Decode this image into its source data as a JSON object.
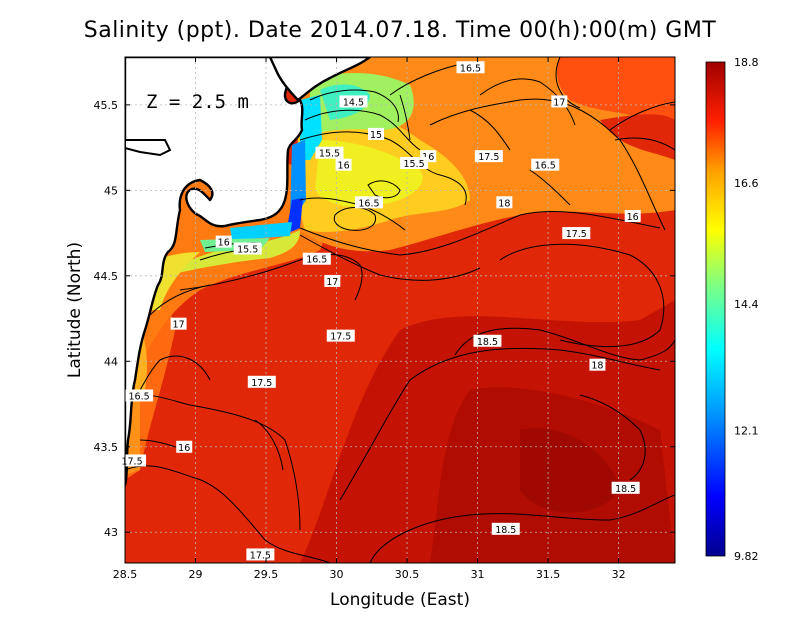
{
  "title": "Salinity (ppt). Date 2014.07.18. Time 00(h):00(m) GMT",
  "depth_label": "Z = 2.5 m",
  "chart_data": {
    "type": "heatmap",
    "title": "Salinity (ppt). Date 2014.07.18. Time 00(h):00(m) GMT",
    "xlabel": "Longitude (East)",
    "ylabel": "Latitude (North)",
    "xlim": [
      28.5,
      32.4
    ],
    "ylim": [
      42.82,
      45.78
    ],
    "x_ticks": [
      28.5,
      29,
      29.5,
      30,
      30.5,
      31,
      31.5,
      32
    ],
    "y_ticks": [
      43,
      43.5,
      44,
      44.5,
      45,
      45.5
    ],
    "x_tick_labels": [
      "28.5",
      "29",
      "29.5",
      "30",
      "30.5",
      "31",
      "31.5",
      "32"
    ],
    "y_tick_labels": [
      "43",
      "43.5",
      "44",
      "44.5",
      "45",
      "45.5"
    ],
    "grid": true,
    "colorbar": {
      "min": 9.82,
      "max": 18.8,
      "tick_labels": [
        "18.8",
        "16.6",
        "14.4",
        "12.1",
        "9.82"
      ],
      "tick_values": [
        18.8,
        16.6,
        14.4,
        12.1,
        9.82
      ],
      "colormap": "jet"
    },
    "contour_labels": [
      {
        "text": "16.5",
        "lon": 30.95,
        "lat": 45.72
      },
      {
        "text": "14.5",
        "lon": 30.12,
        "lat": 45.52
      },
      {
        "text": "17",
        "lon": 31.58,
        "lat": 45.52
      },
      {
        "text": "15",
        "lon": 30.28,
        "lat": 45.33
      },
      {
        "text": "15.5",
        "lon": 29.95,
        "lat": 45.22
      },
      {
        "text": "16",
        "lon": 30.05,
        "lat": 45.15
      },
      {
        "text": "16",
        "lon": 30.65,
        "lat": 45.2
      },
      {
        "text": "15.5",
        "lon": 30.55,
        "lat": 45.16
      },
      {
        "text": "17.5",
        "lon": 31.08,
        "lat": 45.2
      },
      {
        "text": "16.5",
        "lon": 31.48,
        "lat": 45.15
      },
      {
        "text": "16.5",
        "lon": 30.23,
        "lat": 44.93
      },
      {
        "text": "18",
        "lon": 31.19,
        "lat": 44.93
      },
      {
        "text": "16",
        "lon": 32.1,
        "lat": 44.85
      },
      {
        "text": "17.5",
        "lon": 31.7,
        "lat": 44.75
      },
      {
        "text": "16",
        "lon": 29.2,
        "lat": 44.7
      },
      {
        "text": "15.5",
        "lon": 29.37,
        "lat": 44.66
      },
      {
        "text": "16.5",
        "lon": 29.86,
        "lat": 44.6
      },
      {
        "text": "17",
        "lon": 29.97,
        "lat": 44.47
      },
      {
        "text": "17",
        "lon": 28.88,
        "lat": 44.22
      },
      {
        "text": "17.5",
        "lon": 30.03,
        "lat": 44.15
      },
      {
        "text": "18.5",
        "lon": 31.07,
        "lat": 44.12
      },
      {
        "text": "18",
        "lon": 31.85,
        "lat": 43.98
      },
      {
        "text": "17.5",
        "lon": 29.47,
        "lat": 43.88
      },
      {
        "text": "16.5",
        "lon": 28.6,
        "lat": 43.8
      },
      {
        "text": "16",
        "lon": 28.92,
        "lat": 43.5
      },
      {
        "text": "17.5",
        "lon": 28.55,
        "lat": 43.42
      },
      {
        "text": "18.5",
        "lon": 32.05,
        "lat": 43.26
      },
      {
        "text": "18.5",
        "lon": 31.2,
        "lat": 43.02
      },
      {
        "text": "17.5",
        "lon": 29.46,
        "lat": 42.87
      }
    ]
  }
}
